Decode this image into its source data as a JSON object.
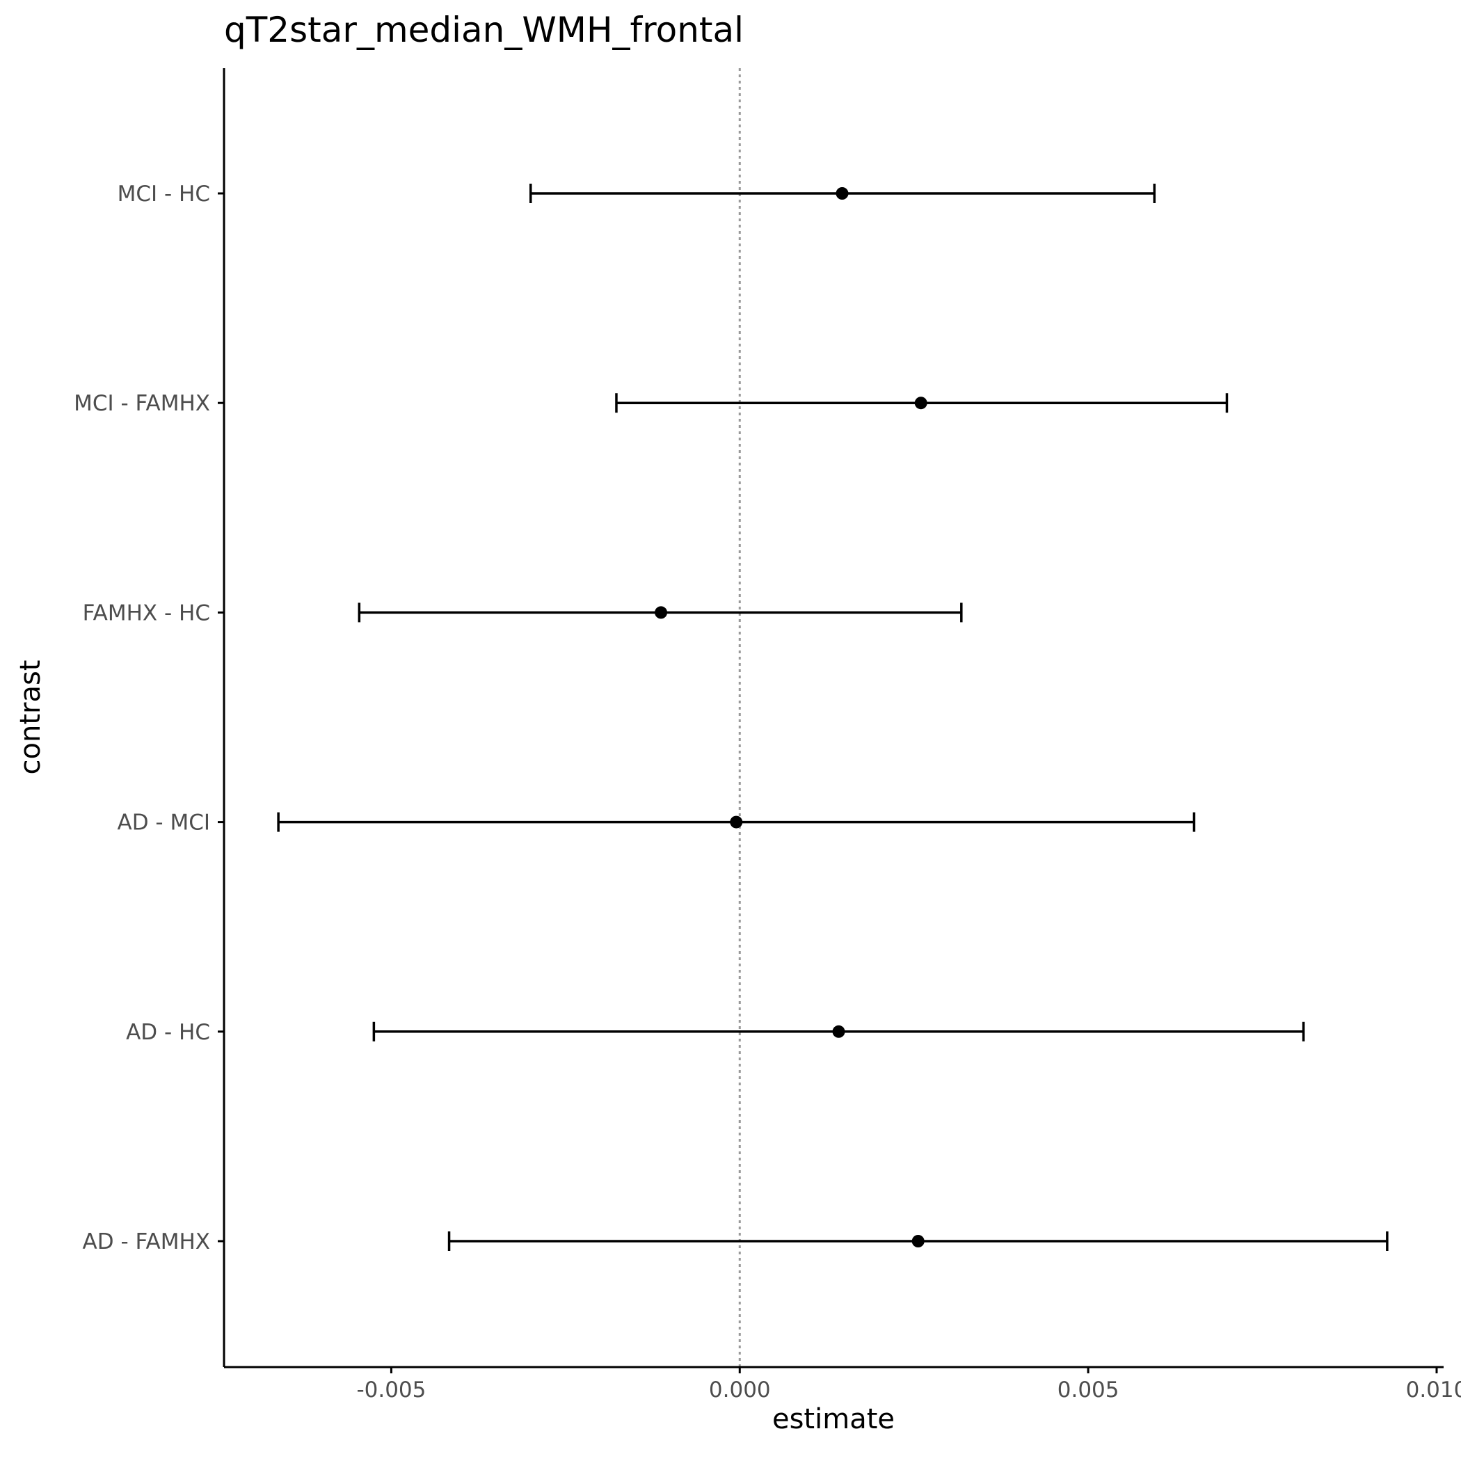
{
  "chart_data": {
    "type": "errorbar",
    "title": "qT2star_median_WMH_frontal",
    "xlabel": "estimate",
    "ylabel": "contrast",
    "xlim": [
      -0.0074,
      0.0101
    ],
    "x_ticks": [
      -0.005,
      0.0,
      0.005,
      0.01
    ],
    "x_tick_labels": [
      "-0.005",
      "0.000",
      "0.005",
      "0.010"
    ],
    "reference_line": 0.0,
    "grid": false,
    "categories": [
      "MCI - HC",
      "MCI - FAMHX",
      "FAMHX - HC",
      "AD - MCI",
      "AD - HC",
      "AD - FAMHX"
    ],
    "estimates": [
      0.00147,
      0.0026,
      -0.00113,
      -5e-05,
      0.00142,
      0.00256
    ],
    "lower": [
      -0.003,
      -0.00177,
      -0.00546,
      -0.00662,
      -0.00525,
      -0.00417
    ],
    "upper": [
      0.00595,
      0.00699,
      0.00318,
      0.00652,
      0.00809,
      0.00929
    ],
    "colors": {
      "ink": "#000000",
      "reference_line": "#999999",
      "tick_text": "#4d4d4d"
    }
  }
}
